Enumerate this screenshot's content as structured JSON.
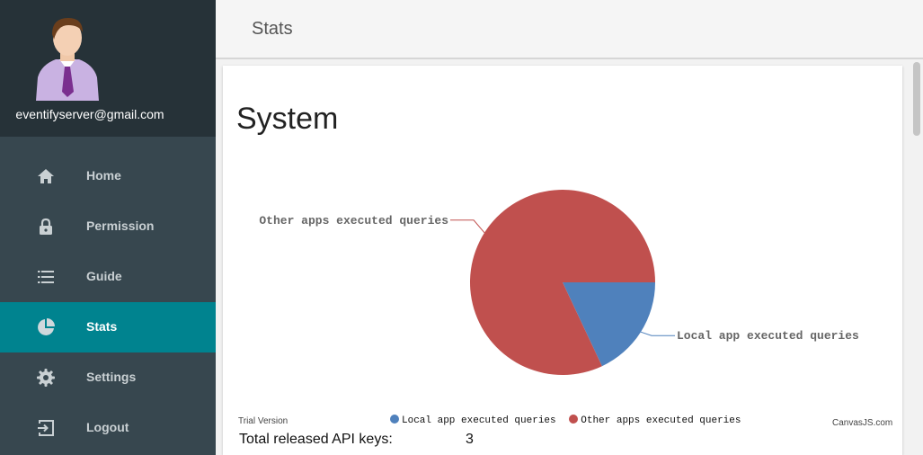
{
  "user": {
    "email": "eventifyserver@gmail.com"
  },
  "nav": {
    "items": [
      {
        "label": "Home",
        "icon": "home-icon"
      },
      {
        "label": "Permission",
        "icon": "lock-icon"
      },
      {
        "label": "Guide",
        "icon": "list-icon"
      },
      {
        "label": "Stats",
        "icon": "pie-chart-icon",
        "active": true
      },
      {
        "label": "Settings",
        "icon": "gear-icon"
      },
      {
        "label": "Logout",
        "icon": "logout-icon"
      }
    ]
  },
  "header": {
    "title": "Stats"
  },
  "card": {
    "title": "System",
    "trial_text": "Trial Version",
    "watermark": "CanvasJS.com"
  },
  "stats": {
    "api_keys_label": "Total released API keys:",
    "api_keys_value": "3"
  },
  "colors": {
    "sidebar": "#37474f",
    "profile_bg": "#263238",
    "active": "#00838f",
    "local": "#4f81bc",
    "other": "#c0504e"
  },
  "chart_data": {
    "type": "pie",
    "title": "",
    "legend_position": "bottom",
    "slices": [
      {
        "name": "Local app executed queries",
        "value": 18,
        "color": "#4f81bc"
      },
      {
        "name": "Other apps executed queries",
        "value": 82,
        "color": "#c0504e"
      }
    ]
  }
}
